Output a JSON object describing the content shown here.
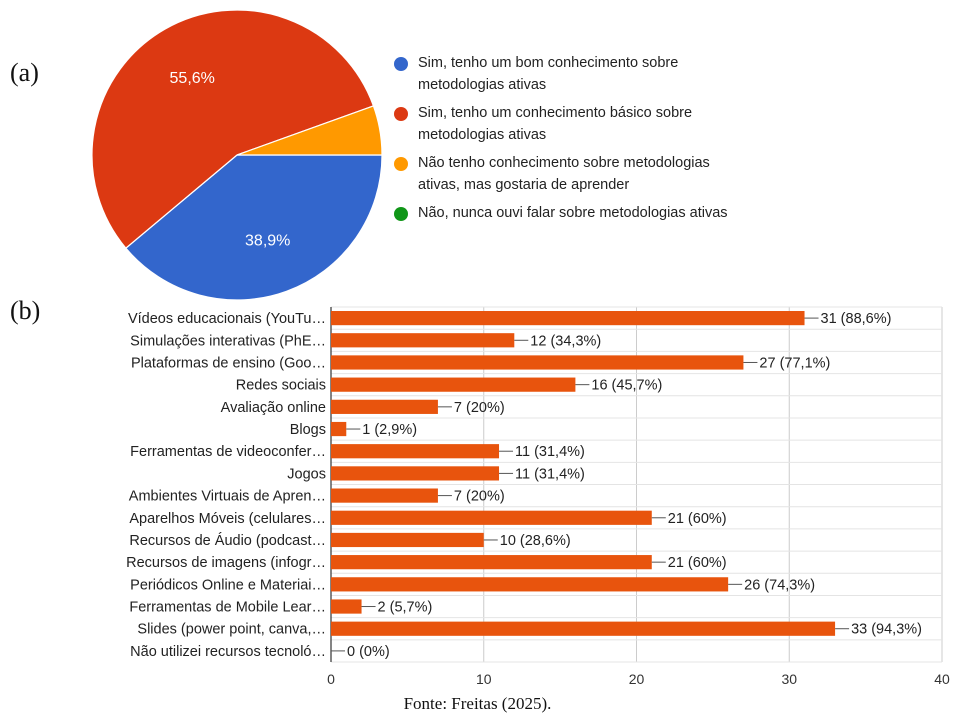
{
  "panel_labels": {
    "a": "(a)",
    "b": "(b)"
  },
  "caption": "Fonte: Freitas (2025).",
  "chart_data": [
    {
      "type": "pie",
      "labels": [
        "Sim, tenho um bom conhecimento sobre metodologias ativas",
        "Sim, tenho um conhecimento básico sobre metodologias ativas",
        "Não tenho conhecimento sobre metodologias ativas, mas gostaria de aprender",
        "Não, nunca ouvi falar sobre metodologias ativas"
      ],
      "values": [
        38.9,
        55.6,
        5.5,
        0
      ],
      "slice_labels": [
        "38,9%",
        "55,6%",
        "",
        ""
      ],
      "colors": [
        "#3366cc",
        "#dc3912",
        "#ff9900",
        "#109618"
      ],
      "legend_position": "right"
    },
    {
      "type": "bar",
      "orientation": "horizontal",
      "categories": [
        "Vídeos educacionais (YouTu…",
        "Simulações interativas (PhE…",
        "Plataformas de ensino (Goo…",
        "Redes sociais",
        "Avaliação online",
        "Blogs",
        "Ferramentas de videoconfer…",
        "Jogos",
        "Ambientes Virtuais de Apren…",
        "Aparelhos Móveis (celulares…",
        "Recursos de Áudio (podcast…",
        "Recursos de imagens (infogr…",
        "Periódicos Online e Materiai…",
        "Ferramentas de Mobile Lear…",
        "Slides (power point, canva,…",
        "Não utilizei recursos tecnoló…"
      ],
      "values": [
        31,
        12,
        27,
        16,
        7,
        1,
        11,
        11,
        7,
        21,
        10,
        21,
        26,
        2,
        33,
        0
      ],
      "data_labels": [
        "31 (88,6%)",
        "12 (34,3%)",
        "27 (77,1%)",
        "16 (45,7%)",
        "7 (20%)",
        "1 (2,9%)",
        "11 (31,4%)",
        "11 (31,4%)",
        "7 (20%)",
        "21 (60%)",
        "10 (28,6%)",
        "21 (60%)",
        "26 (74,3%)",
        "2 (5,7%)",
        "33 (94,3%)",
        "0 (0%)"
      ],
      "xlim": [
        0,
        40
      ],
      "xticks": [
        0,
        10,
        20,
        30,
        40
      ],
      "bar_color": "#e8540d",
      "grid": true
    }
  ]
}
